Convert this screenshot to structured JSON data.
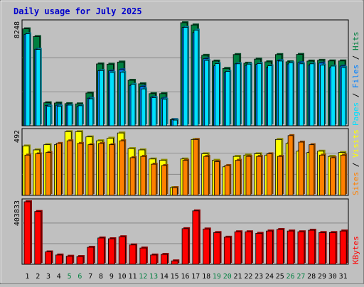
{
  "title": "Daily usage for July 2025",
  "colors": {
    "background": "#c0c0c0",
    "title": "#0000cc",
    "hits": "#008040",
    "files": "#0080ff",
    "pages": "#00e0ff",
    "visits": "#ffff00",
    "sites": "#ff8000",
    "kbytes": "#ff0000",
    "weekend_day": "#008040",
    "weekday": "#000000"
  },
  "chart_data": [
    {
      "type": "bar",
      "panel": "hits-files-pages",
      "ymax_label": "8248",
      "ylim": [
        0,
        8248
      ],
      "legend": [
        "Pages",
        "/",
        "Files",
        "/",
        "Hits"
      ],
      "categories": [
        "1",
        "2",
        "3",
        "4",
        "5",
        "6",
        "7",
        "8",
        "9",
        "10",
        "11",
        "12",
        "13",
        "14",
        "15",
        "16",
        "17",
        "18",
        "19",
        "20",
        "21",
        "22",
        "23",
        "24",
        "25",
        "26",
        "27",
        "28",
        "29",
        "30",
        "31"
      ],
      "series": [
        {
          "name": "Hits",
          "values": [
            7760,
            7140,
            1840,
            1820,
            1770,
            1750,
            2620,
            4950,
            4930,
            5100,
            3640,
            3360,
            2570,
            2570,
            490,
            8250,
            8070,
            5640,
            5180,
            4590,
            5700,
            5010,
            5340,
            5120,
            5700,
            5120,
            5710,
            5180,
            5240,
            5190,
            5190
          ]
        },
        {
          "name": "Files",
          "values": [
            7320,
            6130,
            1620,
            1640,
            1650,
            1540,
            2210,
            4410,
            4390,
            4490,
            3230,
            3140,
            2290,
            2210,
            490,
            7870,
            7460,
            5360,
            4800,
            4270,
            4960,
            4830,
            4920,
            4630,
            5220,
            4950,
            5060,
            4860,
            5020,
            4660,
            4780
          ]
        },
        {
          "name": "Pages",
          "values": [
            7360,
            6110,
            1560,
            1560,
            1650,
            1600,
            2160,
            4420,
            4270,
            4280,
            3320,
            2950,
            2250,
            2120,
            450,
            7880,
            7660,
            5230,
            4970,
            4350,
            4960,
            4930,
            4980,
            4800,
            5180,
            5040,
            4960,
            4960,
            4850,
            4780,
            4660
          ]
        }
      ]
    },
    {
      "type": "bar",
      "panel": "visits-sites",
      "ymax_label": "492",
      "ylim": [
        0,
        492
      ],
      "legend": [
        "Sites",
        "/",
        "Visits"
      ],
      "categories": [
        "1",
        "2",
        "3",
        "4",
        "5",
        "6",
        "7",
        "8",
        "9",
        "10",
        "11",
        "12",
        "13",
        "14",
        "15",
        "16",
        "17",
        "18",
        "19",
        "20",
        "21",
        "22",
        "23",
        "24",
        "25",
        "26",
        "27",
        "28",
        "29",
        "30",
        "31"
      ],
      "series": [
        {
          "name": "Visits",
          "values": [
            380,
            350,
            390,
            390,
            490,
            490,
            450,
            420,
            440,
            480,
            360,
            350,
            280,
            270,
            60,
            280,
            430,
            320,
            270,
            220,
            300,
            310,
            320,
            310,
            430,
            400,
            340,
            330,
            340,
            300,
            330
          ]
        },
        {
          "name": "Sites",
          "values": [
            310,
            320,
            330,
            400,
            420,
            400,
            390,
            400,
            390,
            420,
            290,
            300,
            240,
            230,
            60,
            270,
            430,
            300,
            260,
            230,
            270,
            300,
            300,
            320,
            300,
            460,
            410,
            390,
            310,
            290,
            310
          ]
        }
      ]
    },
    {
      "type": "bar",
      "panel": "kbytes",
      "ymax_label": "403833",
      "ylim": [
        0,
        403833
      ],
      "legend": [
        "KBytes"
      ],
      "categories": [
        "1",
        "2",
        "3",
        "4",
        "5",
        "6",
        "7",
        "8",
        "9",
        "10",
        "11",
        "12",
        "13",
        "14",
        "15",
        "16",
        "17",
        "18",
        "19",
        "20",
        "21",
        "22",
        "23",
        "24",
        "25",
        "26",
        "27",
        "28",
        "29",
        "30",
        "31"
      ],
      "weekend_days": [
        "5",
        "6",
        "12",
        "13",
        "19",
        "20",
        "26",
        "27"
      ],
      "series": [
        {
          "name": "KBytes",
          "values": [
            403833,
            341000,
            80000,
            60000,
            52000,
            50000,
            110000,
            170000,
            165000,
            178000,
            125000,
            105000,
            60000,
            64000,
            22000,
            230000,
            345000,
            228000,
            205000,
            175000,
            210000,
            210000,
            200000,
            215000,
            225000,
            215000,
            210000,
            220000,
            205000,
            205000,
            215000
          ]
        }
      ]
    }
  ]
}
